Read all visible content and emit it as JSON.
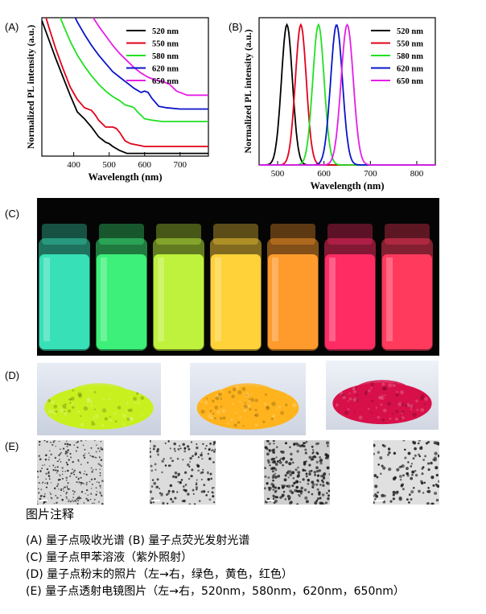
{
  "panels": {
    "A": "(A)",
    "B": "(B)",
    "C": "(C)",
    "D": "(D)",
    "E": "(E)"
  },
  "legend_labels": [
    "520 nm",
    "550 nm",
    "580 nm",
    "620 nm",
    "650 nm"
  ],
  "series_colors": [
    "#000000",
    "#e3001b",
    "#22e022",
    "#0a14c8",
    "#e61ee6"
  ],
  "chart_data": [
    {
      "type": "line",
      "panel": "A",
      "xlabel": "Wavelength (nm)",
      "ylabel": "Normalized PL intensity (a.u.)",
      "xlim": [
        310,
        780
      ],
      "xticks": [
        400,
        500,
        600,
        700
      ],
      "ylim": [
        0,
        1
      ],
      "legend": "top-right",
      "series": [
        {
          "name": "520 nm",
          "offset": 0.02,
          "feature": 500,
          "x": [
            310,
            330,
            350,
            370,
            390,
            410,
            430,
            450,
            470,
            490,
            500,
            510,
            530,
            550,
            570,
            600,
            650,
            700,
            780
          ],
          "y": [
            0.96,
            0.82,
            0.68,
            0.55,
            0.42,
            0.3,
            0.25,
            0.19,
            0.12,
            0.08,
            0.07,
            0.05,
            0.02,
            0.0,
            0.0,
            0.0,
            0.0,
            0.0,
            0.0
          ]
        },
        {
          "name": "550 nm",
          "offset": 0.07,
          "feature": 530,
          "x": [
            310,
            330,
            350,
            370,
            390,
            410,
            430,
            450,
            460,
            470,
            490,
            510,
            520,
            530,
            545,
            560,
            580,
            600,
            650,
            780
          ],
          "y": [
            1.03,
            0.86,
            0.7,
            0.56,
            0.43,
            0.34,
            0.28,
            0.26,
            0.23,
            0.19,
            0.14,
            0.14,
            0.13,
            0.1,
            0.04,
            0.02,
            0.01,
            0.0,
            0.0,
            0.0
          ]
        },
        {
          "name": "580 nm",
          "offset": 0.25,
          "feature": 560,
          "x": [
            330,
            350,
            370,
            390,
            410,
            430,
            450,
            470,
            490,
            510,
            530,
            545,
            560,
            570,
            580,
            600,
            620,
            650,
            780
          ],
          "y": [
            0.98,
            0.83,
            0.7,
            0.58,
            0.48,
            0.4,
            0.33,
            0.27,
            0.22,
            0.18,
            0.15,
            0.12,
            0.11,
            0.1,
            0.07,
            0.02,
            0.01,
            0.0,
            0.0
          ]
        },
        {
          "name": "620 nm",
          "offset": 0.34,
          "feature": 610,
          "x": [
            350,
            370,
            390,
            410,
            430,
            450,
            470,
            490,
            510,
            530,
            550,
            570,
            590,
            600,
            610,
            620,
            640,
            660,
            700,
            780
          ],
          "y": [
            0.98,
            0.86,
            0.74,
            0.63,
            0.54,
            0.46,
            0.39,
            0.33,
            0.27,
            0.23,
            0.19,
            0.15,
            0.12,
            0.13,
            0.12,
            0.08,
            0.02,
            0.01,
            0.0,
            0.0
          ]
        },
        {
          "name": "650 nm",
          "offset": 0.44,
          "feature": 650,
          "x": [
            390,
            410,
            430,
            450,
            470,
            490,
            510,
            530,
            550,
            570,
            590,
            610,
            630,
            650,
            670,
            690,
            720,
            780
          ],
          "y": [
            0.88,
            0.77,
            0.67,
            0.58,
            0.5,
            0.43,
            0.36,
            0.3,
            0.25,
            0.2,
            0.16,
            0.13,
            0.11,
            0.1,
            0.08,
            0.03,
            0.0,
            0.0
          ]
        }
      ]
    },
    {
      "type": "line",
      "panel": "B",
      "xlabel": "Wavelength (nm)",
      "ylabel": "Normalized PL intensity (a.u.)",
      "xlim": [
        460,
        840
      ],
      "xticks": [
        500,
        600,
        700,
        800
      ],
      "ylim": [
        0,
        1.05
      ],
      "legend": "top-right",
      "series": [
        {
          "name": "520 nm",
          "peak": 520,
          "fwhm": 28
        },
        {
          "name": "550 nm",
          "peak": 550,
          "fwhm": 28
        },
        {
          "name": "580 nm",
          "peak": 588,
          "fwhm": 29
        },
        {
          "name": "620 nm",
          "peak": 627,
          "fwhm": 30
        },
        {
          "name": "650 nm",
          "peak": 650,
          "fwhm": 31
        }
      ]
    }
  ],
  "photos": {
    "vial_colors": [
      "#38e0b8",
      "#3cf07a",
      "#bff23c",
      "#ffd23a",
      "#ff9a2c",
      "#ff2c64",
      "#ff3a5c"
    ],
    "powder_colors": [
      "#c8f01e",
      "#ffb41e",
      "#d8104a"
    ]
  },
  "caption": {
    "title": "图片注释",
    "lines": [
      "(A) 量子点吸收光谱    (B) 量子点荧光发射光谱",
      "(C) 量子点甲苯溶液（紫外照射）",
      "(D) 量子点粉末的照片（左→右，绿色，黄色，红色）",
      "(E) 量子点透射电镜图片（左→右，520nm，580nm，620nm，650nm）"
    ]
  }
}
